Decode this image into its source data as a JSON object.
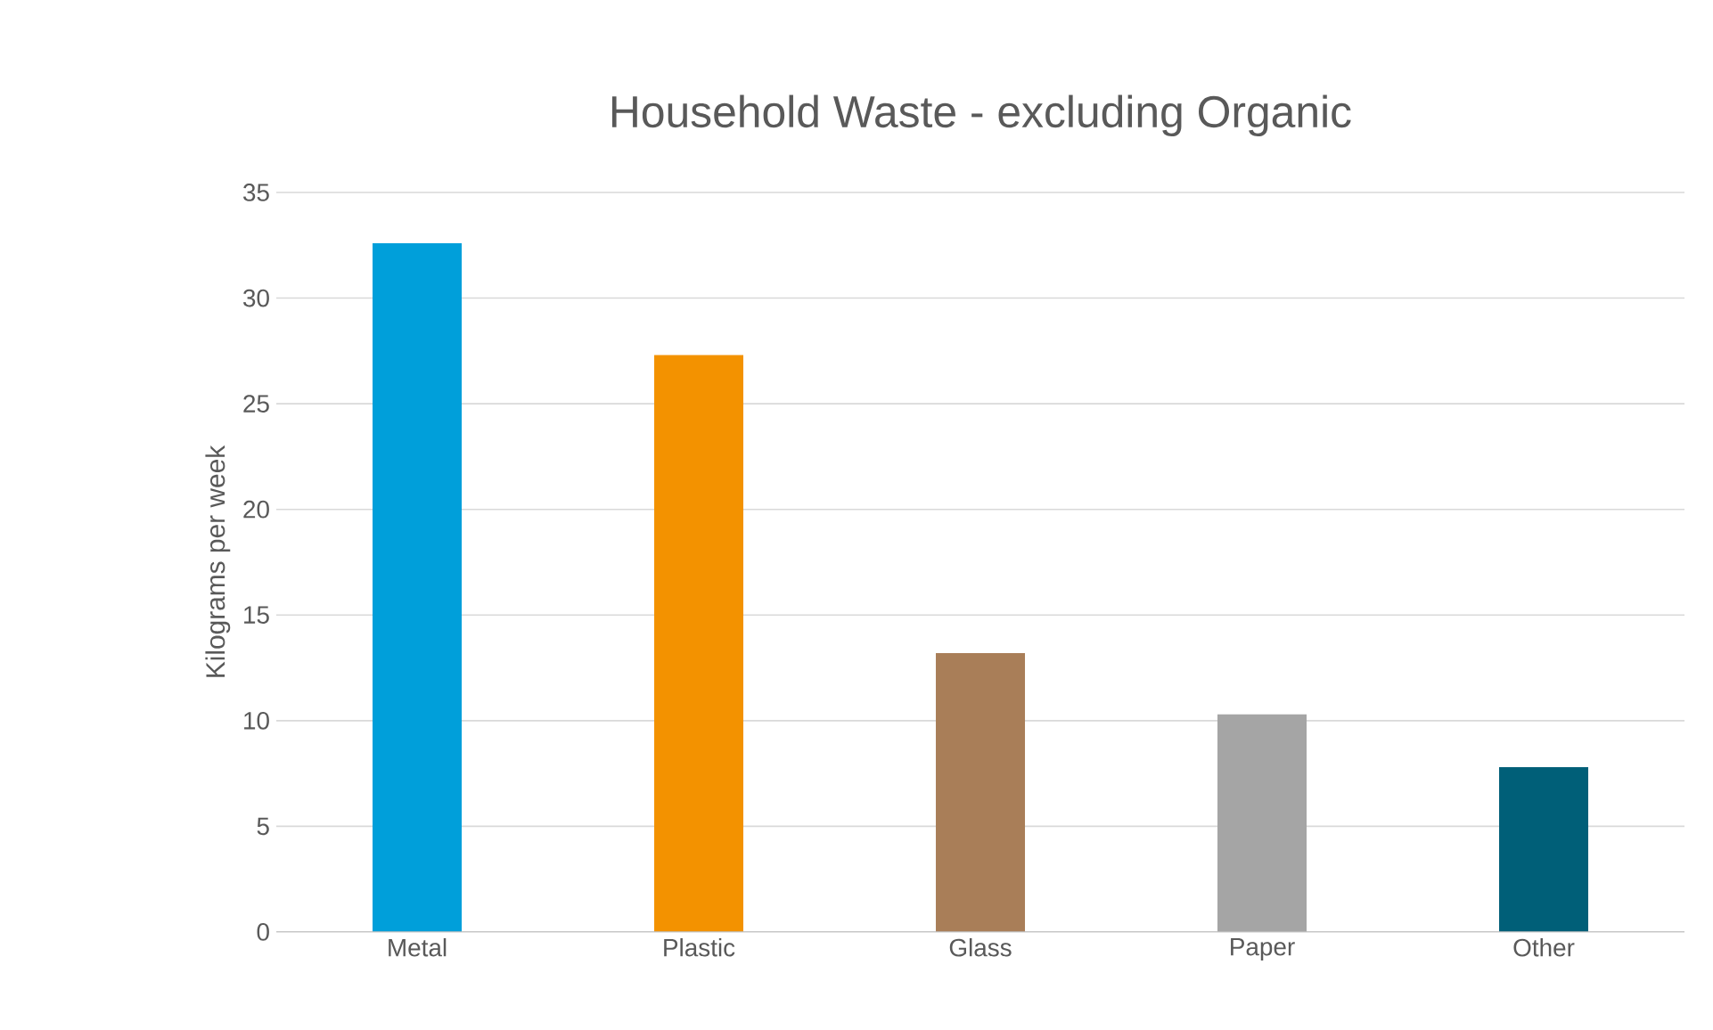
{
  "chart_data": {
    "type": "bar",
    "title": "Household Waste - excluding Organic",
    "ylabel": "Kilograms per week",
    "categories": [
      "Metal",
      "Plastic",
      "Glass",
      "Paper",
      "Other"
    ],
    "values": [
      32.6,
      27.3,
      13.2,
      10.3,
      7.8
    ],
    "colors": [
      "#009fda",
      "#f39200",
      "#a97e58",
      "#a5a5a5",
      "#005f78"
    ],
    "ylim": [
      0,
      35
    ],
    "yticks": [
      0,
      5,
      10,
      15,
      20,
      25,
      30,
      35
    ],
    "grid": "y"
  }
}
